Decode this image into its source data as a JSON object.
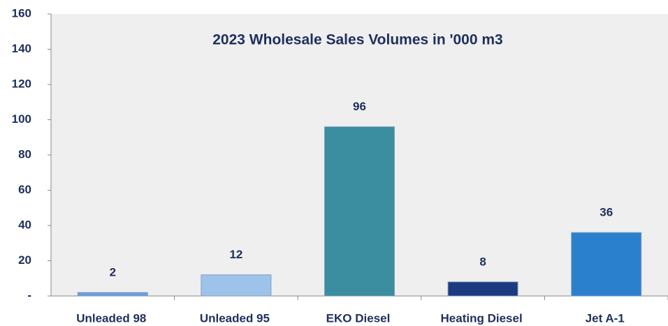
{
  "chart_data": {
    "type": "bar",
    "title": "2023 Wholesale Sales Volumes in  '000 m3",
    "categories": [
      "Unleaded 98",
      "Unleaded 95",
      "EKO Diesel",
      "Heating Diesel",
      "Jet A-1"
    ],
    "values": [
      2,
      12,
      96,
      8,
      36
    ],
    "colors": [
      "#6a9fdc",
      "#9ec3ea",
      "#3a8e9f",
      "#1c3a80",
      "#2a80cc"
    ],
    "ylim": [
      0,
      160
    ],
    "yticks": [
      {
        "value": 0,
        "label": "-"
      },
      20,
      40,
      60,
      80,
      100,
      120,
      140,
      160
    ],
    "grid": false
  }
}
